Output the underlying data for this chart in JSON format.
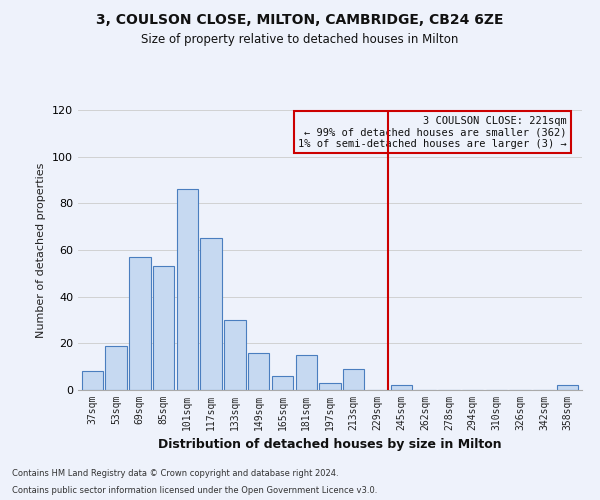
{
  "title1": "3, COULSON CLOSE, MILTON, CAMBRIDGE, CB24 6ZE",
  "title2": "Size of property relative to detached houses in Milton",
  "xlabel": "Distribution of detached houses by size in Milton",
  "ylabel": "Number of detached properties",
  "categories": [
    "37sqm",
    "53sqm",
    "69sqm",
    "85sqm",
    "101sqm",
    "117sqm",
    "133sqm",
    "149sqm",
    "165sqm",
    "181sqm",
    "197sqm",
    "213sqm",
    "229sqm",
    "245sqm",
    "262sqm",
    "278sqm",
    "294sqm",
    "310sqm",
    "326sqm",
    "342sqm",
    "358sqm"
  ],
  "bar_values": [
    8,
    19,
    57,
    53,
    86,
    65,
    30,
    16,
    6,
    15,
    3,
    9,
    0,
    2,
    0,
    0,
    0,
    0,
    0,
    0,
    2
  ],
  "bar_color": "#c6d9f1",
  "bar_edge_color": "#4a7ebf",
  "vline_x": 12.45,
  "vline_color": "#cc0000",
  "annotation_title": "3 COULSON CLOSE: 221sqm",
  "annotation_line1": "← 99% of detached houses are smaller (362)",
  "annotation_line2": "1% of semi-detached houses are larger (3) →",
  "annotation_box_color": "#cc0000",
  "ylim": [
    0,
    120
  ],
  "yticks": [
    0,
    20,
    40,
    60,
    80,
    100,
    120
  ],
  "footer1": "Contains HM Land Registry data © Crown copyright and database right 2024.",
  "footer2": "Contains public sector information licensed under the Open Government Licence v3.0.",
  "bg_color": "#eef2fb"
}
